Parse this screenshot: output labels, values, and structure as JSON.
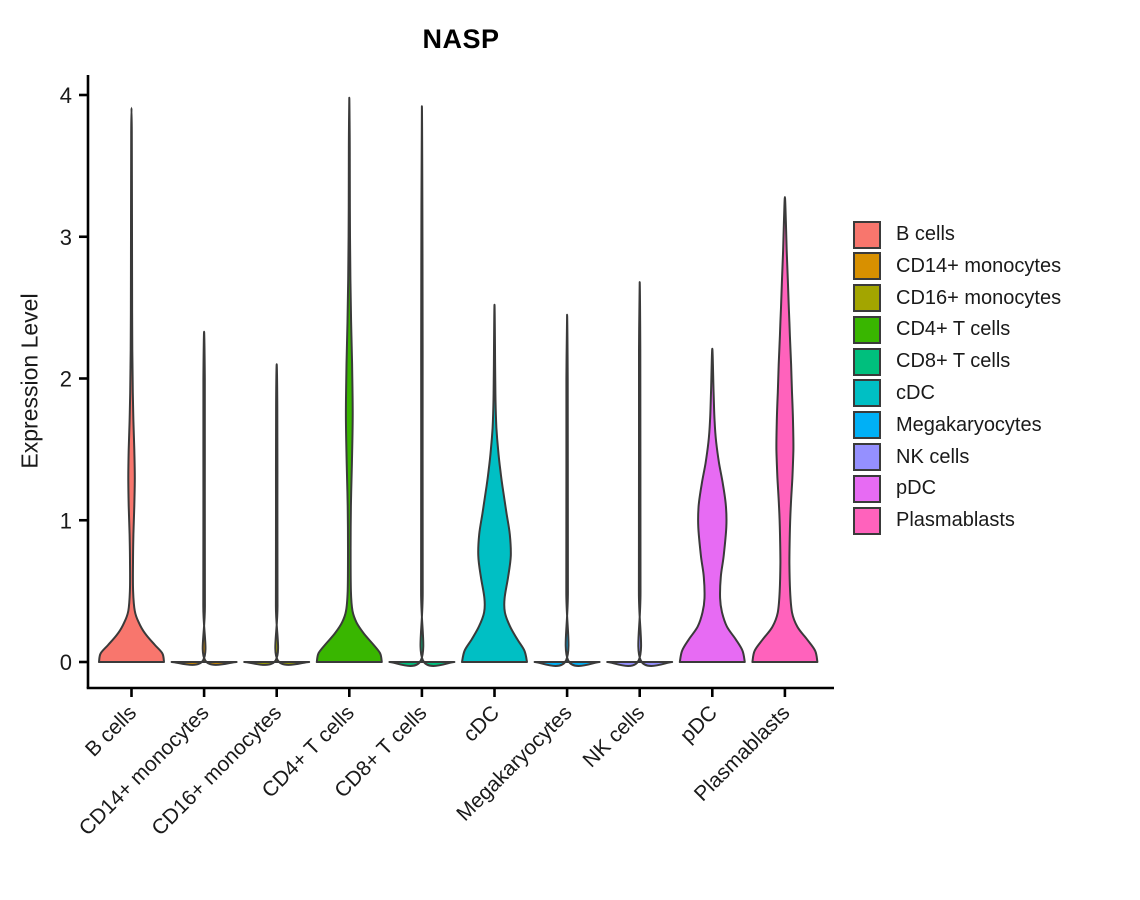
{
  "figure": {
    "title": "NASP",
    "ylabel": "Expression Level"
  },
  "chart_data": {
    "type": "violin",
    "title": "NASP",
    "xlabel": "",
    "ylabel": "Expression Level",
    "ylim": [
      0,
      4
    ],
    "yticks": [
      0,
      1,
      2,
      3,
      4
    ],
    "grid": false,
    "legend_position": "right",
    "axis_color": "#000000",
    "outline_color": "#3A3A3A",
    "text_color": "#1a1a1a",
    "categories": [
      "B cells",
      "CD14+ monocytes",
      "CD16+ monocytes",
      "CD4+ T cells",
      "CD8+ T cells",
      "cDC",
      "Megakaryocytes",
      "NK cells",
      "pDC",
      "Plasmablasts"
    ],
    "series": [
      {
        "name": "B cells",
        "color": "#F8766D",
        "max_expression": 3.91,
        "density_profile": [
          [
            0,
            1.0
          ],
          [
            0.06,
            0.95
          ],
          [
            0.12,
            0.72
          ],
          [
            0.2,
            0.42
          ],
          [
            0.28,
            0.22
          ],
          [
            0.36,
            0.1
          ],
          [
            0.5,
            0.05
          ],
          [
            0.7,
            0.045
          ],
          [
            0.9,
            0.06
          ],
          [
            1.1,
            0.085
          ],
          [
            1.3,
            0.1
          ],
          [
            1.5,
            0.085
          ],
          [
            1.7,
            0.06
          ],
          [
            1.9,
            0.04
          ],
          [
            2.2,
            0.025
          ],
          [
            2.6,
            0.018
          ],
          [
            3.0,
            0.015
          ],
          [
            3.4,
            0.012
          ],
          [
            3.7,
            0.01
          ],
          [
            3.91,
            0
          ]
        ]
      },
      {
        "name": "CD14+ monocytes",
        "color": "#D89000",
        "max_expression": 2.33,
        "density_profile": [
          [
            0,
            1.0
          ],
          [
            0.012,
            0.03
          ],
          [
            0.4,
            0.025
          ],
          [
            1.2,
            0.022
          ],
          [
            2.0,
            0.02
          ],
          [
            2.33,
            0
          ]
        ]
      },
      {
        "name": "CD16+ monocytes",
        "color": "#A3A500",
        "max_expression": 2.1,
        "density_profile": [
          [
            0,
            1.0
          ],
          [
            0.012,
            0.03
          ],
          [
            0.4,
            0.025
          ],
          [
            1.1,
            0.022
          ],
          [
            1.8,
            0.02
          ],
          [
            2.1,
            0
          ]
        ]
      },
      {
        "name": "CD4+ T cells",
        "color": "#39B600",
        "max_expression": 3.98,
        "density_profile": [
          [
            0,
            1.0
          ],
          [
            0.06,
            0.95
          ],
          [
            0.12,
            0.75
          ],
          [
            0.2,
            0.45
          ],
          [
            0.28,
            0.22
          ],
          [
            0.36,
            0.1
          ],
          [
            0.5,
            0.05
          ],
          [
            0.8,
            0.04
          ],
          [
            1.1,
            0.05
          ],
          [
            1.4,
            0.08
          ],
          [
            1.75,
            0.105
          ],
          [
            2.1,
            0.085
          ],
          [
            2.4,
            0.055
          ],
          [
            2.7,
            0.035
          ],
          [
            3.0,
            0.022
          ],
          [
            3.4,
            0.015
          ],
          [
            3.7,
            0.012
          ],
          [
            3.98,
            0
          ]
        ]
      },
      {
        "name": "CD8+ T cells",
        "color": "#00BF7D",
        "max_expression": 3.92,
        "density_profile": [
          [
            0,
            1.0
          ],
          [
            0.012,
            0.03
          ],
          [
            0.5,
            0.025
          ],
          [
            1.5,
            0.022
          ],
          [
            2.8,
            0.02
          ],
          [
            3.92,
            0
          ]
        ]
      },
      {
        "name": "cDC",
        "color": "#00BFC4",
        "max_expression": 2.52,
        "density_profile": [
          [
            0,
            1.0
          ],
          [
            0.08,
            0.92
          ],
          [
            0.16,
            0.7
          ],
          [
            0.25,
            0.48
          ],
          [
            0.35,
            0.32
          ],
          [
            0.45,
            0.31
          ],
          [
            0.6,
            0.42
          ],
          [
            0.75,
            0.5
          ],
          [
            0.9,
            0.47
          ],
          [
            1.05,
            0.37
          ],
          [
            1.2,
            0.27
          ],
          [
            1.35,
            0.18
          ],
          [
            1.5,
            0.11
          ],
          [
            1.65,
            0.06
          ],
          [
            1.85,
            0.03
          ],
          [
            2.1,
            0.02
          ],
          [
            2.52,
            0
          ]
        ]
      },
      {
        "name": "Megakaryocytes",
        "color": "#00B0F6",
        "max_expression": 2.45,
        "density_profile": [
          [
            0,
            1.0
          ],
          [
            0.012,
            0.03
          ],
          [
            0.5,
            0.025
          ],
          [
            1.4,
            0.022
          ],
          [
            2.0,
            0.02
          ],
          [
            2.45,
            0
          ]
        ]
      },
      {
        "name": "NK cells",
        "color": "#9590FF",
        "max_expression": 2.68,
        "density_profile": [
          [
            0,
            1.0
          ],
          [
            0.012,
            0.03
          ],
          [
            0.5,
            0.025
          ],
          [
            1.5,
            0.022
          ],
          [
            2.2,
            0.02
          ],
          [
            2.68,
            0
          ]
        ]
      },
      {
        "name": "pDC",
        "color": "#E76BF3",
        "max_expression": 2.21,
        "density_profile": [
          [
            0,
            1.0
          ],
          [
            0.08,
            0.93
          ],
          [
            0.16,
            0.72
          ],
          [
            0.25,
            0.45
          ],
          [
            0.35,
            0.3
          ],
          [
            0.45,
            0.24
          ],
          [
            0.6,
            0.26
          ],
          [
            0.75,
            0.35
          ],
          [
            0.95,
            0.43
          ],
          [
            1.1,
            0.42
          ],
          [
            1.25,
            0.33
          ],
          [
            1.4,
            0.21
          ],
          [
            1.55,
            0.12
          ],
          [
            1.7,
            0.07
          ],
          [
            1.9,
            0.04
          ],
          [
            2.21,
            0
          ]
        ]
      },
      {
        "name": "Plasmablasts",
        "color": "#FF62BC",
        "max_expression": 3.28,
        "density_profile": [
          [
            0,
            1.0
          ],
          [
            0.08,
            0.93
          ],
          [
            0.16,
            0.68
          ],
          [
            0.25,
            0.38
          ],
          [
            0.35,
            0.22
          ],
          [
            0.5,
            0.16
          ],
          [
            0.7,
            0.14
          ],
          [
            0.9,
            0.15
          ],
          [
            1.1,
            0.18
          ],
          [
            1.3,
            0.23
          ],
          [
            1.5,
            0.26
          ],
          [
            1.7,
            0.25
          ],
          [
            1.9,
            0.22
          ],
          [
            2.1,
            0.19
          ],
          [
            2.3,
            0.155
          ],
          [
            2.5,
            0.12
          ],
          [
            2.7,
            0.09
          ],
          [
            2.9,
            0.055
          ],
          [
            3.1,
            0.03
          ],
          [
            3.28,
            0
          ]
        ]
      }
    ]
  }
}
